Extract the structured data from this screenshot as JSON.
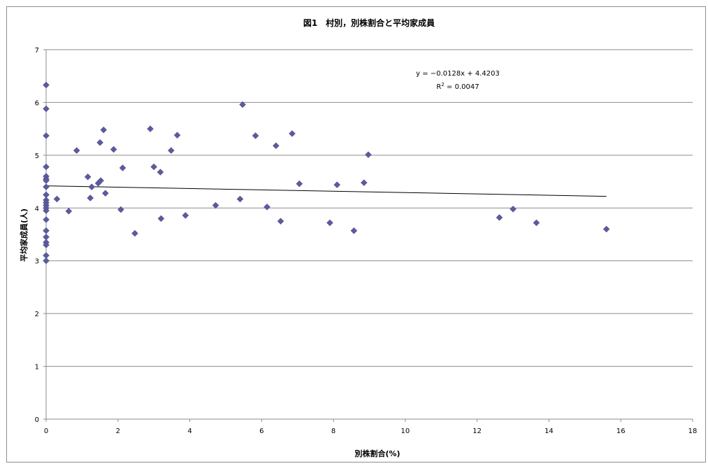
{
  "chart_data": {
    "type": "scatter",
    "title": "図1　村別，別株割合と平均家成員",
    "xlabel": "別株割合(%)",
    "ylabel": "平均家成員(人)",
    "xlim": [
      0,
      18
    ],
    "ylim": [
      0,
      7
    ],
    "x_ticks": [
      "0",
      "2",
      "4",
      "6",
      "8",
      "10",
      "12",
      "14",
      "16",
      "18"
    ],
    "y_ticks": [
      "0",
      "1",
      "2",
      "3",
      "4",
      "5",
      "6",
      "7"
    ],
    "grid": "horizontal",
    "legend": "none",
    "marker": "diamond",
    "marker_color": "#5b5b9c",
    "trendline": {
      "type": "linear",
      "slope": -0.0128,
      "intercept": 4.4203,
      "x_range": [
        0,
        15.6
      ],
      "equation": "y = −0.0128x + 4.4203",
      "r2_label": "R",
      "r2_sup": "2",
      "r2_value": " = 0.0047"
    },
    "points": [
      {
        "x": 0,
        "y": 6.33
      },
      {
        "x": 0,
        "y": 5.88
      },
      {
        "x": 0,
        "y": 5.37
      },
      {
        "x": 0,
        "y": 4.78
      },
      {
        "x": 0,
        "y": 4.6
      },
      {
        "x": 0,
        "y": 4.55
      },
      {
        "x": 0,
        "y": 4.52
      },
      {
        "x": 0,
        "y": 4.4
      },
      {
        "x": 0,
        "y": 4.25
      },
      {
        "x": 0,
        "y": 4.15
      },
      {
        "x": 0,
        "y": 4.1
      },
      {
        "x": 0,
        "y": 4.05
      },
      {
        "x": 0,
        "y": 4.0
      },
      {
        "x": 0,
        "y": 3.95
      },
      {
        "x": 0,
        "y": 3.78
      },
      {
        "x": 0,
        "y": 3.57
      },
      {
        "x": 0,
        "y": 3.45
      },
      {
        "x": 0,
        "y": 3.35
      },
      {
        "x": 0,
        "y": 3.3
      },
      {
        "x": 0,
        "y": 3.1
      },
      {
        "x": 0,
        "y": 3.0
      },
      {
        "x": 0.3,
        "y": 4.17
      },
      {
        "x": 0.63,
        "y": 3.94
      },
      {
        "x": 0.85,
        "y": 5.09
      },
      {
        "x": 1.16,
        "y": 4.59
      },
      {
        "x": 1.23,
        "y": 4.19
      },
      {
        "x": 1.27,
        "y": 4.4
      },
      {
        "x": 1.45,
        "y": 4.47
      },
      {
        "x": 1.5,
        "y": 5.24
      },
      {
        "x": 1.52,
        "y": 4.52
      },
      {
        "x": 1.6,
        "y": 5.48
      },
      {
        "x": 1.65,
        "y": 4.28
      },
      {
        "x": 1.88,
        "y": 5.11
      },
      {
        "x": 2.08,
        "y": 3.97
      },
      {
        "x": 2.13,
        "y": 4.76
      },
      {
        "x": 2.47,
        "y": 3.52
      },
      {
        "x": 2.9,
        "y": 5.5
      },
      {
        "x": 3.0,
        "y": 4.78
      },
      {
        "x": 3.18,
        "y": 4.68
      },
      {
        "x": 3.2,
        "y": 3.8
      },
      {
        "x": 3.48,
        "y": 5.09
      },
      {
        "x": 3.65,
        "y": 5.38
      },
      {
        "x": 3.88,
        "y": 3.86
      },
      {
        "x": 4.72,
        "y": 4.05
      },
      {
        "x": 5.4,
        "y": 4.17
      },
      {
        "x": 5.47,
        "y": 5.96
      },
      {
        "x": 5.83,
        "y": 5.37
      },
      {
        "x": 6.15,
        "y": 4.02
      },
      {
        "x": 6.4,
        "y": 5.18
      },
      {
        "x": 6.53,
        "y": 3.75
      },
      {
        "x": 6.85,
        "y": 5.41
      },
      {
        "x": 7.05,
        "y": 4.46
      },
      {
        "x": 7.9,
        "y": 3.72
      },
      {
        "x": 8.1,
        "y": 4.44
      },
      {
        "x": 8.57,
        "y": 3.57
      },
      {
        "x": 8.85,
        "y": 4.48
      },
      {
        "x": 8.97,
        "y": 5.01
      },
      {
        "x": 12.62,
        "y": 3.82
      },
      {
        "x": 13.0,
        "y": 3.98
      },
      {
        "x": 13.65,
        "y": 3.72
      },
      {
        "x": 15.6,
        "y": 3.6
      }
    ]
  }
}
